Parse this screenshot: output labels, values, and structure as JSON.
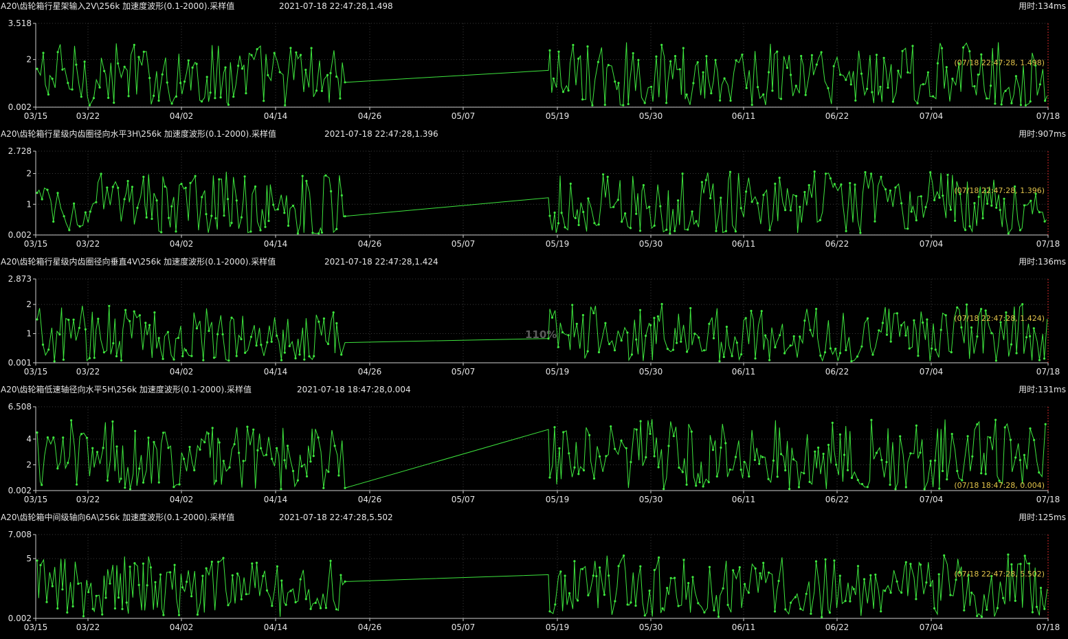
{
  "palette": {
    "background": "#000000",
    "series": "#3ee63e",
    "grid": "#3c3c3c",
    "axis": "#cfcfcf",
    "cursor_label": "#e2c34a",
    "cursor_line": "#d22a2a"
  },
  "zoom_label": "110%",
  "x_ticks": [
    "03/15",
    "03/22",
    "04/02",
    "04/14",
    "04/26",
    "05/07",
    "05/19",
    "05/30",
    "06/11",
    "06/22",
    "07/04",
    "07/18"
  ],
  "panels": [
    {
      "title": "A20\\齿轮箱行星架输入2V\\256k 加速度波形(0.1-2000).采样值",
      "timestamp": "2021-07-18 22:47:28,1.498",
      "elapsed": "用时:134ms",
      "y_ticks": [
        "3.518",
        "2",
        "0.002"
      ],
      "y_tick_values": [
        3.518,
        2,
        0.002
      ],
      "y_max": 3.518,
      "cursor_label": "(07/18 22:47:28, 1.498)"
    },
    {
      "title": "A20\\齿轮箱行星级内齿圈径向水平3H\\256k 加速度波形(0.1-2000).采样值",
      "timestamp": "2021-07-18 22:47:28,1.396",
      "elapsed": "用时:907ms",
      "y_ticks": [
        "2.728",
        "2",
        "1",
        "0.002"
      ],
      "y_tick_values": [
        2.728,
        2,
        1,
        0.002
      ],
      "y_max": 2.728,
      "cursor_label": "(07/18 22:47:28, 1.396)"
    },
    {
      "title": "A20\\齿轮箱行星级内齿圈径向垂直4V\\256k 加速度波形(0.1-2000).采样值",
      "timestamp": "2021-07-18 22:47:28,1.424",
      "elapsed": "用时:136ms",
      "y_ticks": [
        "2.873",
        "2",
        "1",
        "0.001"
      ],
      "y_tick_values": [
        2.873,
        2,
        1,
        0.001
      ],
      "y_max": 2.873,
      "cursor_label": "(07/18 22:47:28, 1.424)"
    },
    {
      "title": "A20\\齿轮箱低速轴径向水平5H\\256k 加速度波形(0.1-2000).采样值",
      "timestamp": "2021-07-18 18:47:28,0.004",
      "elapsed": "用时:131ms",
      "y_ticks": [
        "6.508",
        "4",
        "2",
        "0.002"
      ],
      "y_tick_values": [
        6.508,
        4,
        2,
        0.002
      ],
      "y_max": 6.508,
      "cursor_label": "(07/18 18:47:28, 0.004)"
    },
    {
      "title": "A20\\齿轮箱中间级轴向6A\\256k 加速度波形(0.1-2000).采样值",
      "timestamp": "2021-07-18 22:47:28,5.502",
      "elapsed": "用时:125ms",
      "y_ticks": [
        "7.008",
        "5",
        "0.002"
      ],
      "y_tick_values": [
        7.008,
        5,
        0.002
      ],
      "y_max": 7.008,
      "cursor_label": "(07/18 22:47:28, 5.502)"
    }
  ]
}
